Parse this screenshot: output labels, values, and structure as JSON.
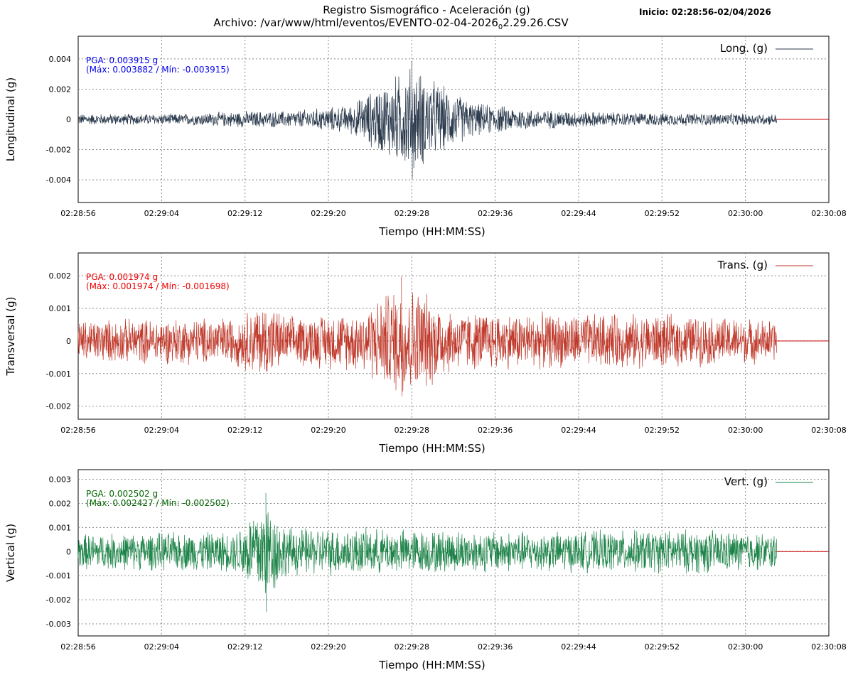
{
  "header": {
    "title": "Registro Sismográfico - Aceleración (g)",
    "file_prefix": "Archivo: /var/www/html/eventos/EVENTO-02-04-2026",
    "file_sub": "0",
    "file_suffix": "2.29.26.CSV",
    "start": "Inicio: 02:28:56-02/04/2026"
  },
  "colors": {
    "longitudinal": "#2b3a4d",
    "transversal": "#c0392b",
    "vertical": "#1e8449",
    "baseline": "#cc0000",
    "grid": "#888888"
  },
  "chart_data": [
    {
      "type": "line",
      "ylabel": "Longitudinal (g)",
      "xlabel": "Tiempo (HH:MM:SS)",
      "legend": "Long. (g)",
      "legend_position": "top-right",
      "pga_text": "PGA: 0.003915 g",
      "range_text": "(Máx: 0.003882 / Mín: -0.003915)",
      "annotation_color": "#0000ee",
      "ylim": [
        -0.0055,
        0.0055
      ],
      "yticks": [
        "0.004",
        "0.002",
        "0",
        "-0.002",
        "-0.004"
      ],
      "ytick_values": [
        0.004,
        0.002,
        0,
        -0.002,
        -0.004
      ],
      "xlim_seconds": [
        0,
        72
      ],
      "xticks": [
        "02:28:56",
        "02:29:04",
        "02:29:12",
        "02:29:20",
        "02:29:28",
        "02:29:36",
        "02:29:44",
        "02:29:52",
        "02:30:00",
        "02:30:08"
      ],
      "record_end_seconds": 67,
      "peak_time_seconds": 32,
      "max": 0.003882,
      "min": -0.003915,
      "envelope": [
        {
          "t": 0,
          "a": 0.0004
        },
        {
          "t": 10,
          "a": 0.0004
        },
        {
          "t": 16,
          "a": 0.0006
        },
        {
          "t": 20,
          "a": 0.0006
        },
        {
          "t": 26,
          "a": 0.001
        },
        {
          "t": 29,
          "a": 0.0025
        },
        {
          "t": 32,
          "a": 0.0039
        },
        {
          "t": 35,
          "a": 0.0024
        },
        {
          "t": 38,
          "a": 0.0012
        },
        {
          "t": 44,
          "a": 0.0007
        },
        {
          "t": 52,
          "a": 0.0005
        },
        {
          "t": 67,
          "a": 0.0004
        }
      ],
      "grid": true
    },
    {
      "type": "line",
      "ylabel": "Transversal (g)",
      "xlabel": "Tiempo (HH:MM:SS)",
      "legend": "Trans. (g)",
      "legend_position": "top-right",
      "pga_text": "PGA: 0.001974 g",
      "range_text": "(Máx: 0.001974 / Mín: -0.001698)",
      "annotation_color": "#ee0000",
      "ylim": [
        -0.0024,
        0.0027
      ],
      "yticks": [
        "0.002",
        "0.001",
        "0",
        "-0.001",
        "-0.002"
      ],
      "ytick_values": [
        0.002,
        0.001,
        0,
        -0.001,
        -0.002
      ],
      "xlim_seconds": [
        0,
        72
      ],
      "xticks": [
        "02:28:56",
        "02:29:04",
        "02:29:12",
        "02:29:20",
        "02:29:28",
        "02:29:36",
        "02:29:44",
        "02:29:52",
        "02:30:00",
        "02:30:08"
      ],
      "record_end_seconds": 67,
      "peak_time_seconds": 31,
      "max": 0.001974,
      "min": -0.001698,
      "envelope": [
        {
          "t": 0,
          "a": 0.0007
        },
        {
          "t": 15,
          "a": 0.0008
        },
        {
          "t": 18,
          "a": 0.0013
        },
        {
          "t": 20,
          "a": 0.0008
        },
        {
          "t": 27,
          "a": 0.001
        },
        {
          "t": 30,
          "a": 0.0017
        },
        {
          "t": 31,
          "a": 0.0019
        },
        {
          "t": 33,
          "a": 0.0017
        },
        {
          "t": 36,
          "a": 0.001
        },
        {
          "t": 46,
          "a": 0.0009
        },
        {
          "t": 55,
          "a": 0.0009
        },
        {
          "t": 67,
          "a": 0.0007
        }
      ],
      "grid": true
    },
    {
      "type": "line",
      "ylabel": "Vertical (g)",
      "xlabel": "Tiempo (HH:MM:SS)",
      "legend": "Vert. (g)",
      "legend_position": "top-right",
      "pga_text": "PGA: 0.002502 g",
      "range_text": "(Máx: 0.002427 / Mín: -0.002502)",
      "annotation_color": "#006600",
      "ylim": [
        -0.0035,
        0.0034
      ],
      "yticks": [
        "0.003",
        "0.002",
        "0.001",
        "0",
        "-0.001",
        "-0.002",
        "-0.003"
      ],
      "ytick_values": [
        0.003,
        0.002,
        0.001,
        0,
        -0.001,
        -0.002,
        -0.003
      ],
      "xlim_seconds": [
        0,
        72
      ],
      "xticks": [
        "02:28:56",
        "02:29:04",
        "02:29:12",
        "02:29:20",
        "02:29:28",
        "02:29:36",
        "02:29:44",
        "02:29:52",
        "02:30:00",
        "02:30:08"
      ],
      "record_end_seconds": 67,
      "peak_time_seconds": 18,
      "max": 0.002427,
      "min": -0.002502,
      "envelope": [
        {
          "t": 0,
          "a": 0.0008
        },
        {
          "t": 15,
          "a": 0.0009
        },
        {
          "t": 17,
          "a": 0.002
        },
        {
          "t": 18,
          "a": 0.0024
        },
        {
          "t": 20,
          "a": 0.0011
        },
        {
          "t": 30,
          "a": 0.001
        },
        {
          "t": 45,
          "a": 0.0009
        },
        {
          "t": 60,
          "a": 0.001
        },
        {
          "t": 67,
          "a": 0.0008
        }
      ],
      "grid": true
    }
  ]
}
